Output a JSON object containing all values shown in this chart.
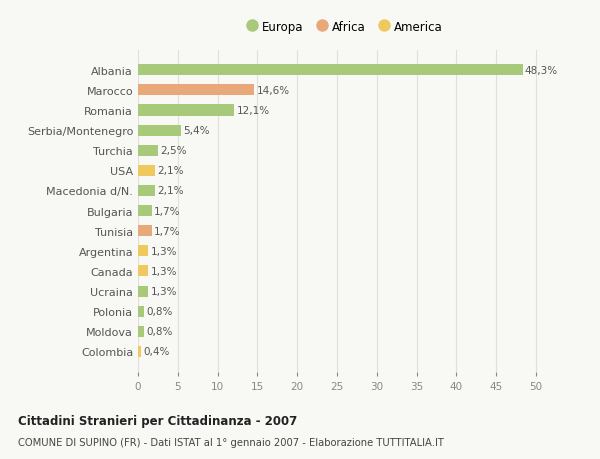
{
  "countries": [
    "Albania",
    "Marocco",
    "Romania",
    "Serbia/Montenegro",
    "Turchia",
    "USA",
    "Macedonia d/N.",
    "Bulgaria",
    "Tunisia",
    "Argentina",
    "Canada",
    "Ucraina",
    "Polonia",
    "Moldova",
    "Colombia"
  ],
  "values": [
    48.3,
    14.6,
    12.1,
    5.4,
    2.5,
    2.1,
    2.1,
    1.7,
    1.7,
    1.3,
    1.3,
    1.3,
    0.8,
    0.8,
    0.4
  ],
  "labels": [
    "48,3%",
    "14,6%",
    "12,1%",
    "5,4%",
    "2,5%",
    "2,1%",
    "2,1%",
    "1,7%",
    "1,7%",
    "1,3%",
    "1,3%",
    "1,3%",
    "0,8%",
    "0,8%",
    "0,4%"
  ],
  "continents": [
    "Europa",
    "Africa",
    "Europa",
    "Europa",
    "Europa",
    "America",
    "Europa",
    "Europa",
    "Africa",
    "America",
    "America",
    "Europa",
    "Europa",
    "Europa",
    "America"
  ],
  "colors": {
    "Europa": "#a8c87a",
    "Africa": "#e8a87a",
    "America": "#f0c860"
  },
  "legend_order": [
    "Europa",
    "Africa",
    "America"
  ],
  "background_color": "#f8f8f5",
  "grid_color": "#e0e0d8",
  "title": "Cittadini Stranieri per Cittadinanza - 2007",
  "subtitle": "COMUNE DI SUPINO (FR) - Dati ISTAT al 1° gennaio 2007 - Elaborazione TUTTITALIA.IT",
  "xlim": [
    0,
    52
  ],
  "xticks": [
    0,
    5,
    10,
    15,
    20,
    25,
    30,
    35,
    40,
    45,
    50
  ]
}
